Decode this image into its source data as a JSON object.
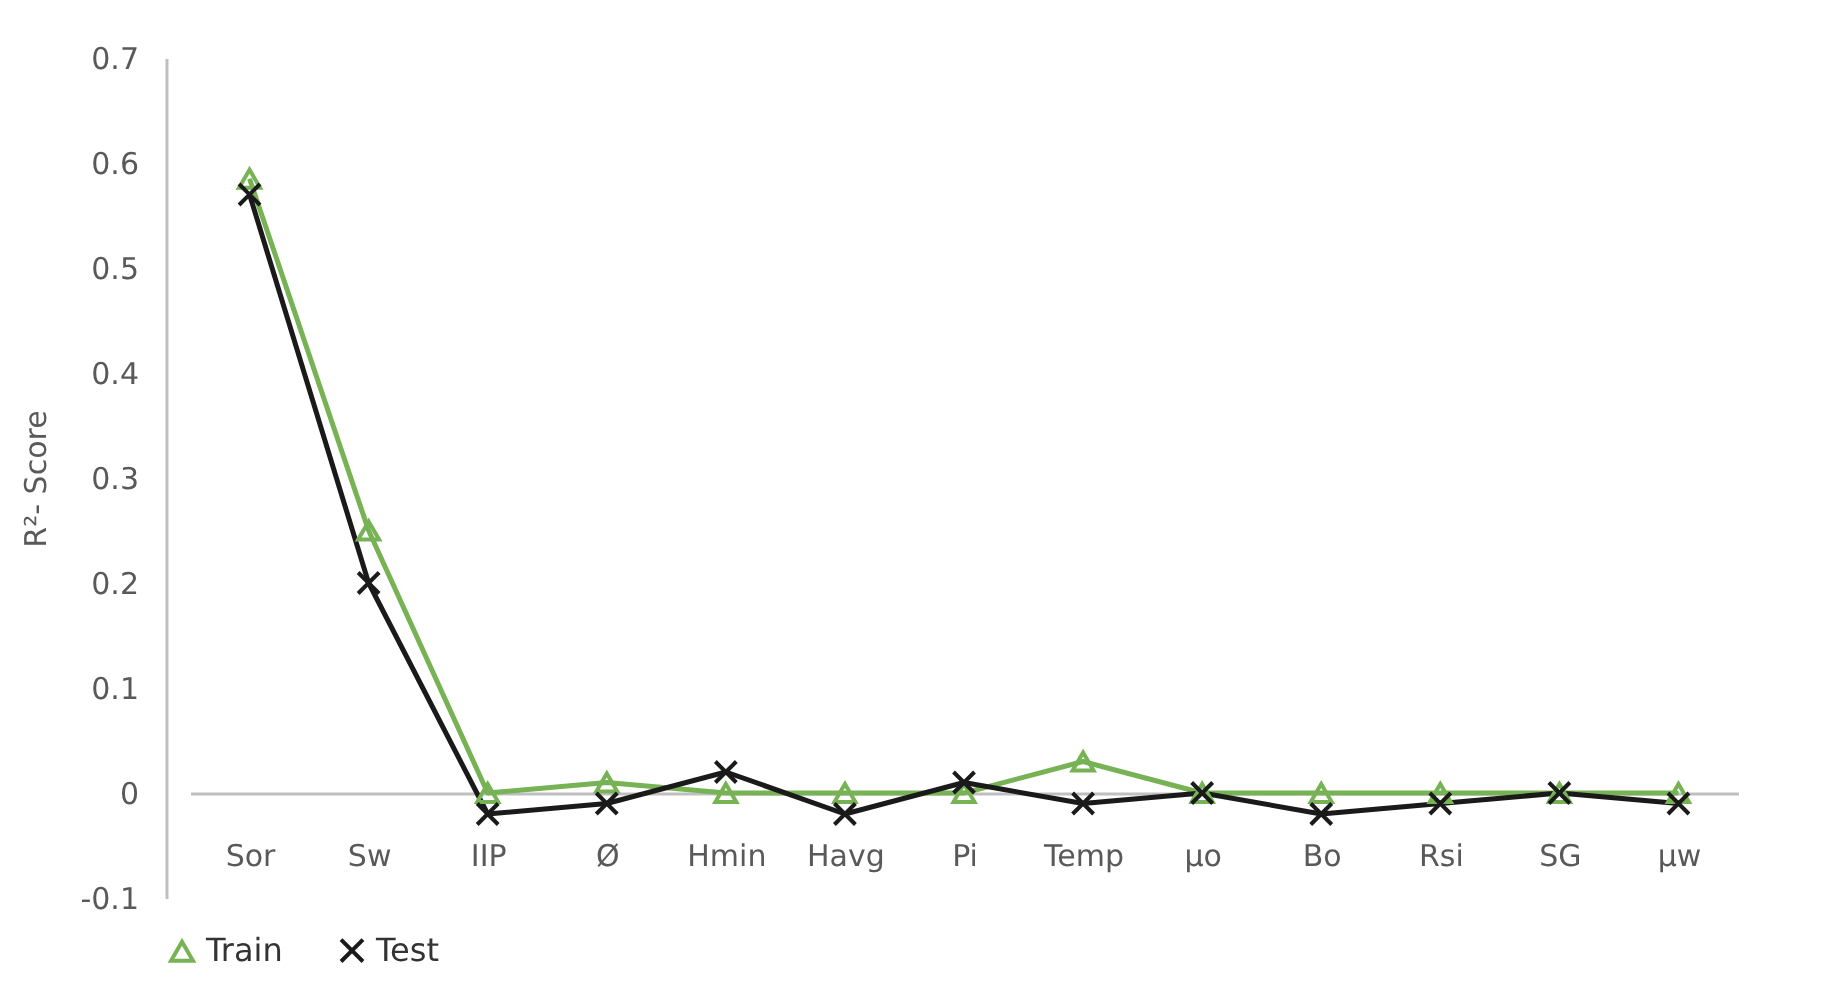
{
  "chart_data": {
    "type": "line",
    "ylabel": "R²- Score",
    "categories": [
      "Sor",
      "Sw",
      "IIP",
      "Ø",
      "Hmin",
      "Havg",
      "Pi",
      "Temp",
      "μo",
      "Bo",
      "Rsi",
      "SG",
      "μw"
    ],
    "series": [
      {
        "name": "Train",
        "color": "#77b255",
        "marker": "triangle",
        "values": [
          0.585,
          0.25,
          0,
          0.01,
          0,
          0,
          0,
          0.03,
          0,
          0,
          0,
          0,
          0
        ]
      },
      {
        "name": "Test",
        "color": "#1a1a1a",
        "marker": "cross",
        "values": [
          0.57,
          0.2,
          -0.02,
          -0.01,
          0.02,
          -0.02,
          0.01,
          -0.01,
          0,
          -0.02,
          -0.01,
          0,
          -0.01
        ]
      }
    ],
    "ylim": [
      -0.1,
      0.7
    ],
    "yticks": [
      -0.1,
      0,
      0.1,
      0.2,
      0.3,
      0.4,
      0.5,
      0.6,
      0.7
    ],
    "grid": false,
    "legend": "bottom"
  }
}
